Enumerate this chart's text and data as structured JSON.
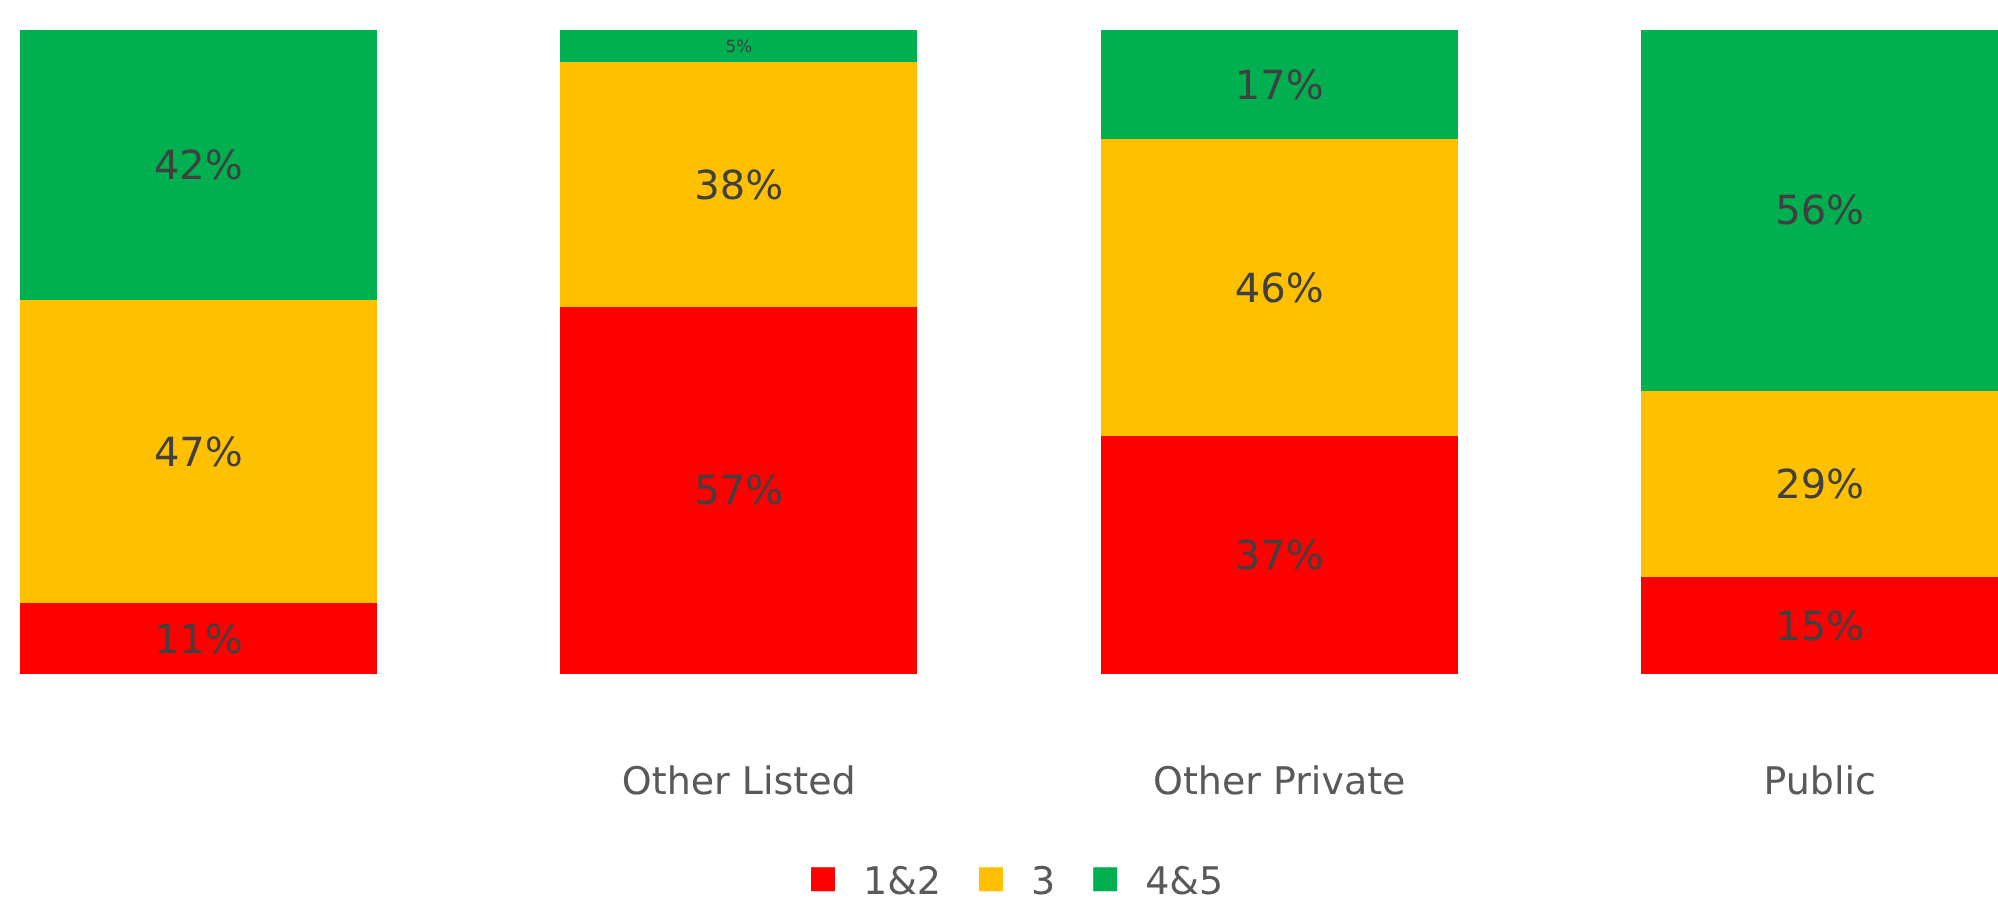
{
  "chart_data": {
    "type": "bar",
    "stacked": true,
    "legend": "bottom",
    "categories": [
      null,
      "Other Listed",
      "Other Private",
      "Public"
    ],
    "series": [
      {
        "name": "1&2",
        "color": "#ff0000",
        "values": [
          11,
          57,
          37,
          15
        ],
        "value_labels": [
          "11%",
          "57%",
          "37%",
          "15%"
        ]
      },
      {
        "name": "3",
        "color": "#ffc000",
        "values": [
          47,
          38,
          46,
          29
        ],
        "value_labels": [
          "47%",
          "38%",
          "46%",
          "29%"
        ]
      },
      {
        "name": "4&5",
        "color": "#00b050",
        "values": [
          42,
          5,
          17,
          56
        ],
        "value_labels": [
          "42%",
          "5%",
          "17%",
          "56%"
        ]
      }
    ]
  }
}
